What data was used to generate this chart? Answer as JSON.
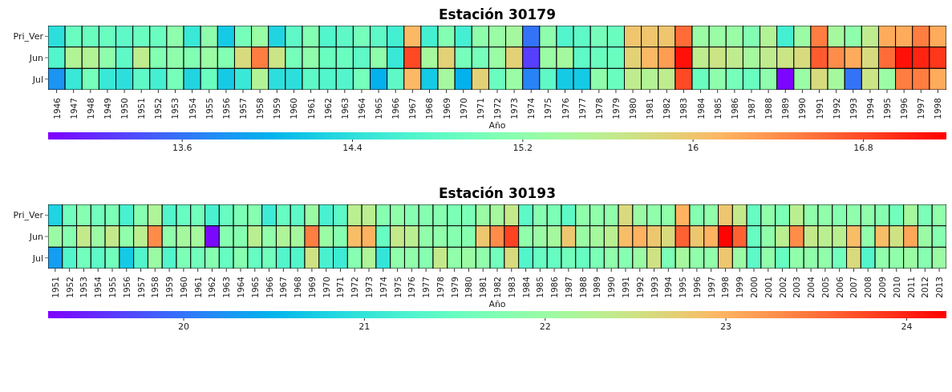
{
  "chart_data": [
    {
      "type": "heatmap",
      "title": "Estación 30179",
      "xlabel": "Año",
      "categories": [
        "1946",
        "1947",
        "1948",
        "1949",
        "1950",
        "1951",
        "1952",
        "1953",
        "1954",
        "1955",
        "1956",
        "1957",
        "1958",
        "1959",
        "1960",
        "1961",
        "1962",
        "1963",
        "1964",
        "1965",
        "1966",
        "1967",
        "1968",
        "1969",
        "1970",
        "1971",
        "1972",
        "1973",
        "1974",
        "1975",
        "1976",
        "1977",
        "1978",
        "1979",
        "1980",
        "1981",
        "1982",
        "1983",
        "1984",
        "1985",
        "1986",
        "1987",
        "1988",
        "1989",
        "1990",
        "1991",
        "1992",
        "1993",
        "1994",
        "1995",
        "1996",
        "1997",
        "1998"
      ],
      "y_categories": [
        "Pri_Ver",
        "Jun",
        "Jul"
      ],
      "cells": [
        [
          14.4,
          14.9,
          14.9,
          14.9,
          14.8,
          14.9,
          14.9,
          15.2,
          14.5,
          15.2,
          14.2,
          15.0,
          15.3,
          14.3,
          14.8,
          15.1,
          14.7,
          14.8,
          15.0,
          14.8,
          14.6,
          16.1,
          14.6,
          15.1,
          14.6,
          15.2,
          15.3,
          15.4,
          13.6,
          15.2,
          14.7,
          14.8,
          15.0,
          14.9,
          16.0,
          16.0,
          16.0,
          16.6,
          15.3,
          15.3,
          15.3,
          15.1,
          15.5,
          14.6,
          15.3,
          16.5,
          15.4,
          15.2,
          15.6,
          16.2,
          16.2,
          16.5,
          16.2
        ],
        [
          14.7,
          15.5,
          15.5,
          15.2,
          14.8,
          15.6,
          15.1,
          15.2,
          15.1,
          15.3,
          15.1,
          15.8,
          16.5,
          15.7,
          15.0,
          15.2,
          14.9,
          14.9,
          14.8,
          15.2,
          14.5,
          16.8,
          15.4,
          15.9,
          15.0,
          15.0,
          15.3,
          15.9,
          13.3,
          15.3,
          15.4,
          14.8,
          14.9,
          14.9,
          15.9,
          16.1,
          16.3,
          17.1,
          15.6,
          15.7,
          15.6,
          15.4,
          15.6,
          15.7,
          15.8,
          16.7,
          16.4,
          16.2,
          15.8,
          16.6,
          17.1,
          17.0,
          16.9
        ],
        [
          13.8,
          14.5,
          15.0,
          14.5,
          14.4,
          14.8,
          14.6,
          15.0,
          14.3,
          14.9,
          14.2,
          14.5,
          15.5,
          14.4,
          14.4,
          14.8,
          14.7,
          14.7,
          15.0,
          14.0,
          14.8,
          16.1,
          14.2,
          15.4,
          14.0,
          15.9,
          14.9,
          15.3,
          13.7,
          14.8,
          14.2,
          14.2,
          15.2,
          14.9,
          15.6,
          15.5,
          15.6,
          16.8,
          14.9,
          15.2,
          15.0,
          14.9,
          15.2,
          13.0,
          15.3,
          15.8,
          15.4,
          13.6,
          15.7,
          15.3,
          16.5,
          16.5,
          16.2
        ]
      ],
      "clim": [
        12.97,
        17.19
      ],
      "cticks": [
        13.6,
        14.4,
        15.2,
        16.0,
        16.8
      ]
    },
    {
      "type": "heatmap",
      "title": "Estación 30193",
      "xlabel": "Año",
      "categories": [
        "1951",
        "1952",
        "1953",
        "1954",
        "1955",
        "1956",
        "1957",
        "1958",
        "1959",
        "1960",
        "1961",
        "1962",
        "1963",
        "1964",
        "1965",
        "1966",
        "1967",
        "1968",
        "1969",
        "1970",
        "1971",
        "1972",
        "1973",
        "1974",
        "1975",
        "1976",
        "1977",
        "1978",
        "1979",
        "1980",
        "1981",
        "1982",
        "1983",
        "1984",
        "1985",
        "1986",
        "1987",
        "1988",
        "1989",
        "1990",
        "1991",
        "1992",
        "1993",
        "1994",
        "1995",
        "1996",
        "1997",
        "1998",
        "1999",
        "2000",
        "2001",
        "2002",
        "2003",
        "2004",
        "2005",
        "2006",
        "2007",
        "2008",
        "2009",
        "2010",
        "2011",
        "2012",
        "2013"
      ],
      "y_categories": [
        "Pri_Ver",
        "Jun",
        "Jul"
      ],
      "cells": [
        [
          20.8,
          21.6,
          21.8,
          21.6,
          21.7,
          21.2,
          21.8,
          22.2,
          21.3,
          21.5,
          21.6,
          21.2,
          21.5,
          21.7,
          21.8,
          21.1,
          21.5,
          21.4,
          22.0,
          21.2,
          21.4,
          22.3,
          22.3,
          21.8,
          21.9,
          21.8,
          21.8,
          21.8,
          21.7,
          21.7,
          22.0,
          22.1,
          22.4,
          21.4,
          21.8,
          21.7,
          21.4,
          21.9,
          21.9,
          21.9,
          22.6,
          22.0,
          21.9,
          21.9,
          23.0,
          21.8,
          21.9,
          22.8,
          22.4,
          21.5,
          21.9,
          21.7,
          22.3,
          21.9,
          21.9,
          21.8,
          21.9,
          21.9,
          21.8,
          21.6,
          22.1,
          21.7,
          21.9
        ],
        [
          22.0,
          21.8,
          22.4,
          22.0,
          22.4,
          21.9,
          22.3,
          23.3,
          21.9,
          22.1,
          22.1,
          19.3,
          21.8,
          21.8,
          22.3,
          21.9,
          22.2,
          22.1,
          23.4,
          22.0,
          21.8,
          22.9,
          23.0,
          21.5,
          22.4,
          22.3,
          21.9,
          21.9,
          21.8,
          21.8,
          22.8,
          23.3,
          23.8,
          21.9,
          22.0,
          22.1,
          22.8,
          22.0,
          22.1,
          22.3,
          22.9,
          23.0,
          22.8,
          22.6,
          23.6,
          22.8,
          23.0,
          24.2,
          23.6,
          21.5,
          21.9,
          22.3,
          23.3,
          22.4,
          22.3,
          22.3,
          22.9,
          21.9,
          22.9,
          22.5,
          23.1,
          22.0,
          21.8
        ],
        [
          20.3,
          21.3,
          21.6,
          21.4,
          21.6,
          20.7,
          21.3,
          22.0,
          21.3,
          21.7,
          21.6,
          21.8,
          21.5,
          21.8,
          21.5,
          21.6,
          21.3,
          21.3,
          22.5,
          21.2,
          21.1,
          21.8,
          22.2,
          21.0,
          21.9,
          21.9,
          21.8,
          22.4,
          21.9,
          22.0,
          21.9,
          21.6,
          22.6,
          21.3,
          21.5,
          21.5,
          21.6,
          21.5,
          21.7,
          21.9,
          21.8,
          22.0,
          22.5,
          21.7,
          22.1,
          21.9,
          21.9,
          22.8,
          22.0,
          21.4,
          21.9,
          21.5,
          21.9,
          21.9,
          21.9,
          21.6,
          22.6,
          21.3,
          21.9,
          21.9,
          22.0,
          21.8,
          22.0
        ]
      ],
      "clim": [
        19.25,
        24.22
      ],
      "cticks": [
        20,
        21,
        22,
        23,
        24
      ]
    }
  ]
}
